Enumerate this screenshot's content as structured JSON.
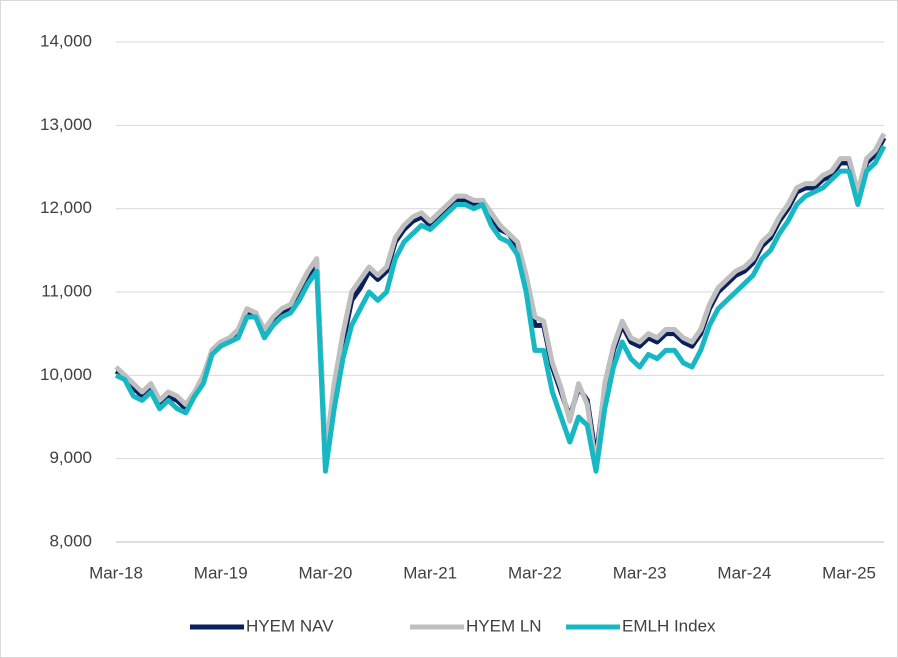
{
  "chart_data": {
    "type": "line",
    "categories": [
      "Mar-18",
      null,
      null,
      null,
      null,
      null,
      null,
      null,
      null,
      null,
      null,
      null,
      "Mar-19",
      null,
      null,
      null,
      null,
      null,
      null,
      null,
      null,
      null,
      null,
      null,
      "Mar-20",
      null,
      null,
      null,
      null,
      null,
      null,
      null,
      null,
      null,
      null,
      null,
      "Mar-21",
      null,
      null,
      null,
      null,
      null,
      null,
      null,
      null,
      null,
      null,
      null,
      "Mar-22",
      null,
      null,
      null,
      null,
      null,
      null,
      null,
      null,
      null,
      null,
      null,
      "Mar-23",
      null,
      null,
      null,
      null,
      null,
      null,
      null,
      null,
      null,
      null,
      null,
      "Mar-24",
      null,
      null,
      null,
      null,
      null,
      null,
      null,
      null,
      null,
      null,
      null,
      "Mar-25",
      null,
      null,
      null,
      null
    ],
    "series": [
      {
        "name": "HYEM NAV",
        "color": "#0a1f5c",
        "values": [
          10050,
          10000,
          9850,
          9750,
          9850,
          9650,
          9750,
          9700,
          9600,
          9750,
          9950,
          10300,
          10400,
          10400,
          10500,
          10750,
          10750,
          10500,
          10650,
          10750,
          10800,
          11000,
          11200,
          11350,
          9000,
          9800,
          10400,
          10900,
          11050,
          11250,
          11150,
          11250,
          11600,
          11750,
          11850,
          11900,
          11800,
          11900,
          12000,
          12100,
          12100,
          12050,
          12100,
          11900,
          11750,
          11700,
          11550,
          11150,
          10600,
          10600,
          10100,
          9800,
          9500,
          9850,
          9700,
          9000,
          9850,
          10300,
          10600,
          10400,
          10350,
          10450,
          10400,
          10500,
          10500,
          10400,
          10350,
          10500,
          10800,
          11000,
          11100,
          11200,
          11250,
          11350,
          11550,
          11650,
          11850,
          12000,
          12200,
          12250,
          12250,
          12350,
          12400,
          12550,
          12550,
          12150,
          12550,
          12650,
          12850
        ]
      },
      {
        "name": "HYEM LN",
        "color": "#bfbfbf",
        "values": [
          10100,
          10000,
          9900,
          9800,
          9900,
          9700,
          9800,
          9750,
          9650,
          9800,
          10000,
          10300,
          10400,
          10450,
          10550,
          10800,
          10750,
          10550,
          10700,
          10800,
          10850,
          11050,
          11250,
          11400,
          9050,
          9900,
          10500,
          11000,
          11150,
          11300,
          11200,
          11300,
          11650,
          11800,
          11900,
          11950,
          11850,
          11950,
          12050,
          12150,
          12150,
          12100,
          12100,
          11950,
          11800,
          11700,
          11600,
          11200,
          10700,
          10650,
          10150,
          9850,
          9450,
          9900,
          9650,
          8900,
          9900,
          10350,
          10650,
          10450,
          10400,
          10500,
          10450,
          10550,
          10550,
          10450,
          10400,
          10550,
          10850,
          11050,
          11150,
          11250,
          11300,
          11400,
          11600,
          11700,
          11900,
          12050,
          12250,
          12300,
          12300,
          12400,
          12450,
          12600,
          12600,
          12200,
          12600,
          12700,
          12900
        ]
      },
      {
        "name": "EMLH Index",
        "color": "#17b8c4",
        "values": [
          10000,
          9950,
          9750,
          9700,
          9800,
          9600,
          9700,
          9600,
          9550,
          9750,
          9900,
          10250,
          10350,
          10400,
          10450,
          10700,
          10700,
          10450,
          10600,
          10700,
          10750,
          10900,
          11100,
          11250,
          8850,
          9600,
          10200,
          10600,
          10800,
          11000,
          10900,
          11000,
          11400,
          11600,
          11700,
          11800,
          11750,
          11850,
          11950,
          12050,
          12050,
          12000,
          12050,
          11800,
          11650,
          11600,
          11450,
          11000,
          10300,
          10300,
          9800,
          9500,
          9200,
          9500,
          9400,
          8850,
          9600,
          10100,
          10400,
          10200,
          10100,
          10250,
          10200,
          10300,
          10300,
          10150,
          10100,
          10300,
          10600,
          10800,
          10900,
          11000,
          11100,
          11200,
          11400,
          11500,
          11700,
          11850,
          12050,
          12150,
          12200,
          12250,
          12350,
          12450,
          12450,
          12050,
          12450,
          12550,
          12750
        ]
      }
    ],
    "ylim": [
      8000,
      14000
    ],
    "yticks": [
      {
        "value": 8000,
        "label": "8,000"
      },
      {
        "value": 9000,
        "label": "9,000"
      },
      {
        "value": 10000,
        "label": "10,000"
      },
      {
        "value": 11000,
        "label": "11,000"
      },
      {
        "value": 12000,
        "label": "12,000"
      },
      {
        "value": 13000,
        "label": "13,000"
      },
      {
        "value": 14000,
        "label": "14,000"
      }
    ],
    "grid": true,
    "legend": "bottom"
  }
}
